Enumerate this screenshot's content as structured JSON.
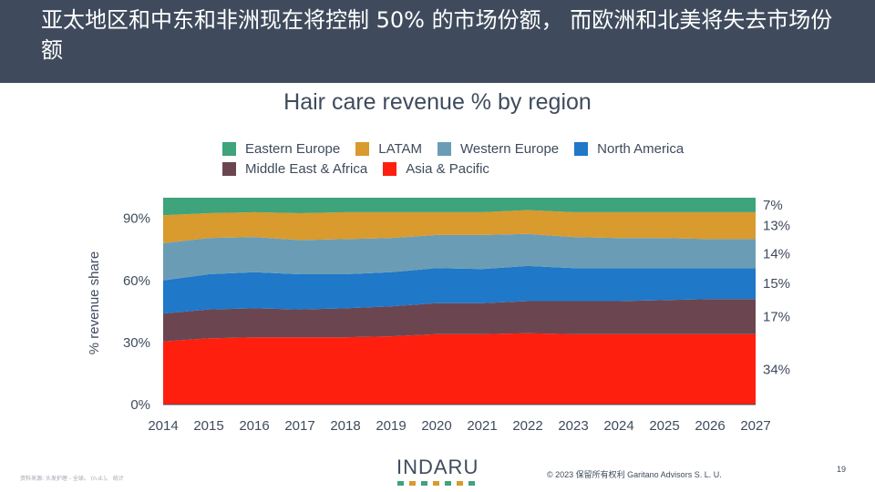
{
  "header": {
    "title": "亚太地区和中东和非洲现在将控制 50% 的市场份额， 而欧洲和北美将失去市场份额"
  },
  "footer": {
    "logo_text": "INDARU",
    "logo_dot_colors": [
      "#3fa37c",
      "#d99a2e",
      "#3fa37c",
      "#d99a2e",
      "#3fa37c",
      "#d99a2e",
      "#3fa37c"
    ],
    "copyright": "© 2023 保留所有权利 Garitano Advisors S. L. U.",
    "page_number": "19",
    "source_note": "资料来源: 头发护理 - 全球。 (n.d.)。 统计"
  },
  "chart_data": {
    "type": "area",
    "title": "Hair care revenue % by region",
    "ylabel": "% revenue share",
    "xlabel": "",
    "stacked": true,
    "ylim": [
      0,
      100
    ],
    "yticks": [
      0,
      30,
      60,
      90
    ],
    "ytick_labels": [
      "0%",
      "30%",
      "60%",
      "90%"
    ],
    "x": [
      2014,
      2015,
      2016,
      2017,
      2018,
      2019,
      2020,
      2021,
      2022,
      2023,
      2024,
      2025,
      2026,
      2027
    ],
    "legend_position": "top",
    "series": [
      {
        "name": "Asia & Pacific",
        "color": "#ff1f0f",
        "values": [
          30.5,
          32,
          32.5,
          32.5,
          32.5,
          33,
          34,
          34,
          34.5,
          34,
          34,
          34,
          34,
          34
        ]
      },
      {
        "name": "Middle East & Africa",
        "color": "#6b4650",
        "values": [
          13.5,
          14,
          14,
          13.5,
          14,
          14.5,
          15,
          15,
          15.5,
          16,
          16,
          16.5,
          17,
          17
        ]
      },
      {
        "name": "North America",
        "color": "#1f78c8",
        "values": [
          16,
          17,
          17.5,
          17,
          16.5,
          16.5,
          17,
          16.5,
          17,
          16,
          16,
          15.5,
          15,
          15
        ]
      },
      {
        "name": "Western Europe",
        "color": "#6a9db5",
        "values": [
          18,
          17.5,
          17,
          16.5,
          17,
          16.5,
          16,
          16.5,
          15.5,
          15,
          14.5,
          14.5,
          14,
          14
        ]
      },
      {
        "name": "LATAM",
        "color": "#d99a2e",
        "values": [
          13.5,
          12,
          12,
          13,
          13,
          12.5,
          11,
          11,
          11.5,
          12,
          12.5,
          12.5,
          13,
          13
        ]
      },
      {
        "name": "Eastern Europe",
        "color": "#3fa37c",
        "values": [
          8.5,
          7.5,
          7,
          7.5,
          7,
          7,
          7,
          7,
          6,
          7,
          7,
          7,
          7,
          7
        ]
      }
    ],
    "end_labels": [
      "34%",
      "17%",
      "15%",
      "14%",
      "13%",
      "7%"
    ]
  },
  "legend": {
    "rows": [
      [
        {
          "label": "Eastern Europe",
          "color": "#3fa37c"
        },
        {
          "label": "LATAM",
          "color": "#d99a2e"
        },
        {
          "label": "Western Europe",
          "color": "#6a9db5"
        },
        {
          "label": "North America",
          "color": "#1f78c8"
        }
      ],
      [
        {
          "label": "Middle East & Africa",
          "color": "#6b4650"
        },
        {
          "label": "Asia & Pacific",
          "color": "#ff1f0f"
        }
      ]
    ]
  }
}
